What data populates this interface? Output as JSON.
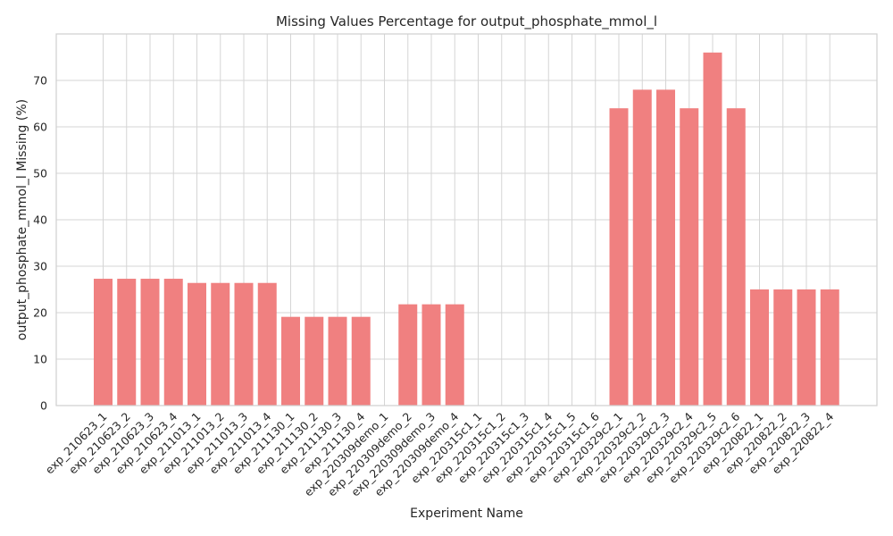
{
  "chart_data": {
    "type": "bar",
    "title": "Missing Values Percentage for output_phosphate_mmol_l",
    "xlabel": "Experiment Name",
    "ylabel": "output_phosphate_mmol_l Missing (%)",
    "ylim": [
      0,
      80
    ],
    "yticks": [
      0,
      10,
      20,
      30,
      40,
      50,
      60,
      70
    ],
    "grid": true,
    "bar_color": "#f08080",
    "categories": [
      "exp_210623_1",
      "exp_210623_2",
      "exp_210623_3",
      "exp_210623_4",
      "exp_211013_1",
      "exp_211013_2",
      "exp_211013_3",
      "exp_211013_4",
      "exp_211130_1",
      "exp_211130_2",
      "exp_211130_3",
      "exp_211130_4",
      "exp_220309demo_1",
      "exp_220309demo_2",
      "exp_220309demo_3",
      "exp_220309demo_4",
      "exp_220315c1_1",
      "exp_220315c1_2",
      "exp_220315c1_3",
      "exp_220315c1_4",
      "exp_220315c1_5",
      "exp_220315c1_6",
      "exp_220329c2_1",
      "exp_220329c2_2",
      "exp_220329c2_3",
      "exp_220329c2_4",
      "exp_220329c2_5",
      "exp_220329c2_6",
      "exp_220822_1",
      "exp_220822_2",
      "exp_220822_3",
      "exp_220822_4"
    ],
    "values": [
      27.3,
      27.3,
      27.3,
      27.3,
      26.4,
      26.4,
      26.4,
      26.4,
      19.1,
      19.1,
      19.1,
      19.1,
      0,
      21.8,
      21.8,
      21.8,
      0,
      0,
      0,
      0,
      0,
      0,
      64,
      68,
      68,
      64,
      76,
      64,
      25,
      25,
      25,
      25
    ]
  }
}
